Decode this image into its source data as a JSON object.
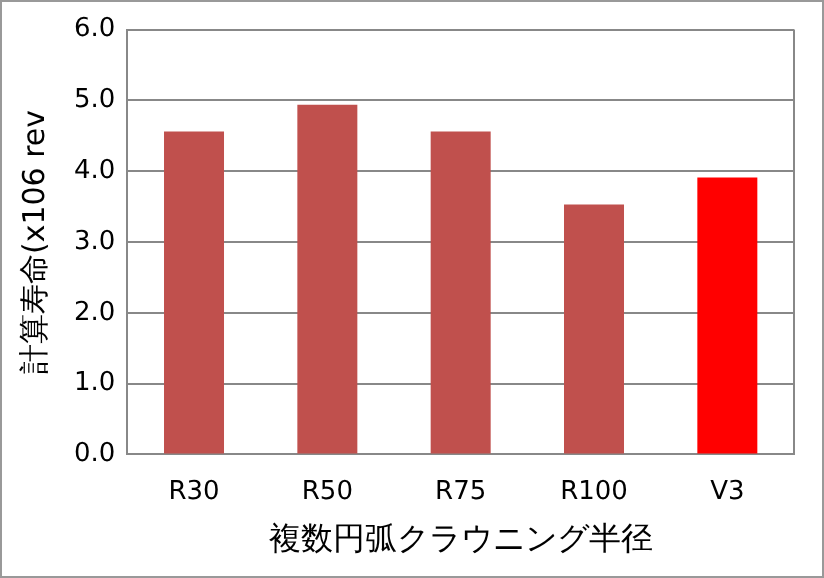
{
  "chart_data": {
    "type": "bar",
    "xlabel": "複数円弧クラウニング半径",
    "ylabel": "計算寿命(x106 rev",
    "categories": [
      "R30",
      "R50",
      "R75",
      "R100",
      "V3"
    ],
    "values": [
      4.56,
      4.94,
      4.56,
      3.53,
      3.91
    ],
    "colors": [
      "#c0504d",
      "#c0504d",
      "#c0504d",
      "#c0504d",
      "#ff0000"
    ],
    "ylim": [
      0,
      6
    ],
    "yticks": [
      {
        "value": 0,
        "label": "0.0"
      },
      {
        "value": 1,
        "label": "1.0"
      },
      {
        "value": 2,
        "label": "2.0"
      },
      {
        "value": 3,
        "label": "3.0"
      },
      {
        "value": 4,
        "label": "4.0"
      },
      {
        "value": 5,
        "label": "5.0"
      },
      {
        "value": 6,
        "label": "6.0"
      }
    ],
    "grid": "y",
    "legend": false
  }
}
